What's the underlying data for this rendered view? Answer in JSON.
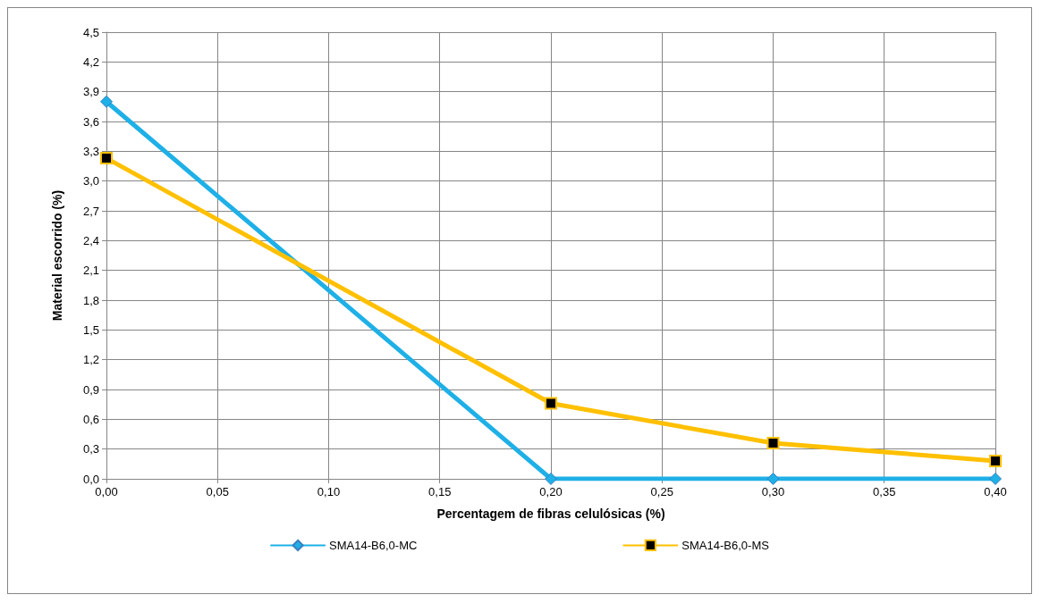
{
  "chart_data": {
    "type": "line",
    "xlabel": "Percentagem de fibras celulósicas (%)",
    "ylabel": "Material escorrido (%)",
    "x": [
      0,
      0.2,
      0.3,
      0.4
    ],
    "series": [
      {
        "name": "SMA14-B6,0-MC",
        "color": "#1eb0e6",
        "marker": "diamond",
        "values": [
          3.8,
          0,
          0,
          0
        ]
      },
      {
        "name": "SMA14-B6,0-MS",
        "color": "#ffc000",
        "marker": "square",
        "values": [
          3.23,
          0.76,
          0.36,
          0.18
        ]
      }
    ],
    "xlim": [
      0,
      0.4
    ],
    "xticks": [
      {
        "value": 0,
        "label": "0,00"
      },
      {
        "value": 0.05,
        "label": "0,05"
      },
      {
        "value": 0.1,
        "label": "0,10"
      },
      {
        "value": 0.15,
        "label": "0,15"
      },
      {
        "value": 0.2,
        "label": "0,20"
      },
      {
        "value": 0.25,
        "label": "0,25"
      },
      {
        "value": 0.3,
        "label": "0,30"
      },
      {
        "value": 0.35,
        "label": "0,35"
      },
      {
        "value": 0.4,
        "label": "0,40"
      }
    ],
    "ylim": [
      0,
      4.5
    ],
    "yticks": [
      {
        "value": 0,
        "label": "0,0"
      },
      {
        "value": 0.3,
        "label": "0,3"
      },
      {
        "value": 0.6,
        "label": "0,6"
      },
      {
        "value": 0.9,
        "label": "0,9"
      },
      {
        "value": 1.2,
        "label": "1,2"
      },
      {
        "value": 1.5,
        "label": "1,5"
      },
      {
        "value": 1.8,
        "label": "1,8"
      },
      {
        "value": 2.1,
        "label": "2,1"
      },
      {
        "value": 2.4,
        "label": "2,4"
      },
      {
        "value": 2.7,
        "label": "2,7"
      },
      {
        "value": 3.0,
        "label": "3,0"
      },
      {
        "value": 3.3,
        "label": "3,3"
      },
      {
        "value": 3.6,
        "label": "3,6"
      },
      {
        "value": 3.9,
        "label": "3,9"
      },
      {
        "value": 4.2,
        "label": "4,2"
      },
      {
        "value": 4.5,
        "label": "4,5"
      }
    ],
    "grid": true,
    "legend": "bottom",
    "line_style": "solid"
  }
}
